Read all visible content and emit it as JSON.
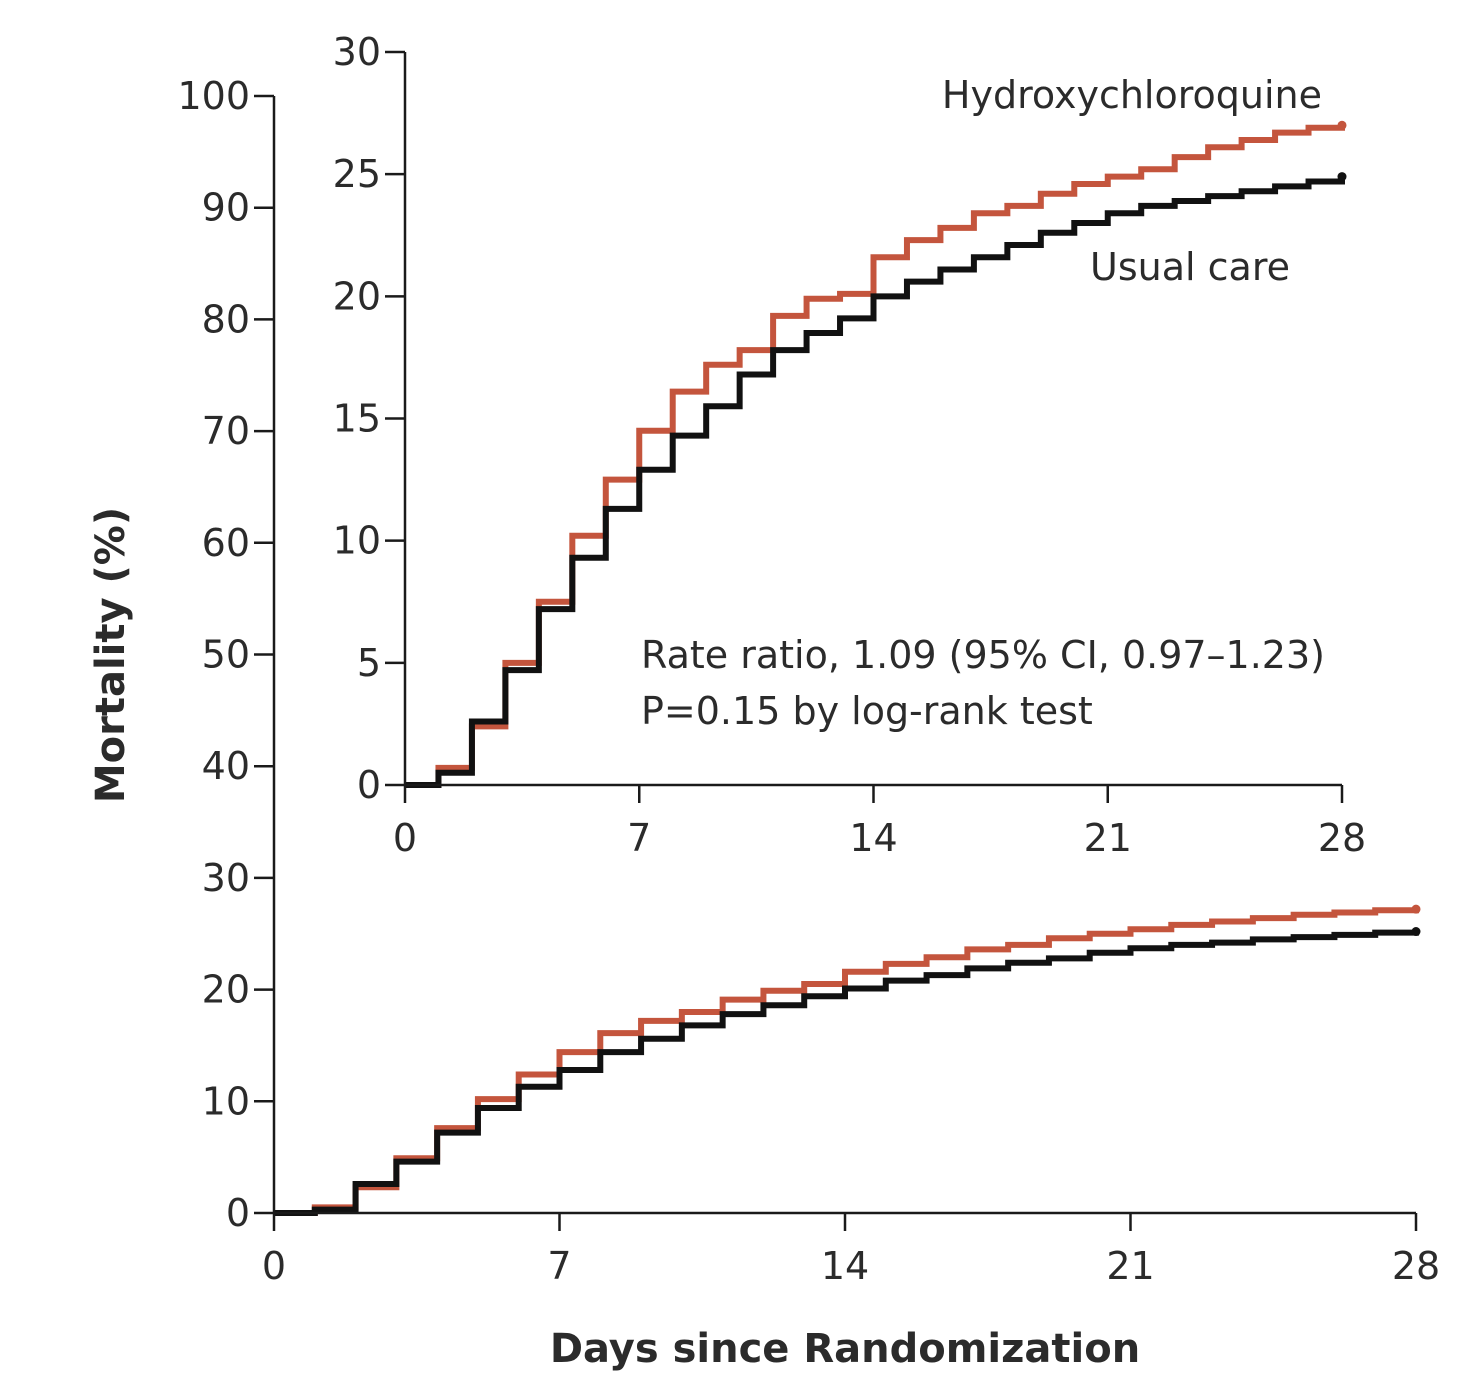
{
  "chart_data": [
    {
      "panel": "main",
      "type": "line",
      "step": true,
      "xlabel": "Days since Randomization",
      "ylabel": "Mortality (%)",
      "xlim": [
        0,
        28
      ],
      "ylim": [
        0,
        100
      ],
      "x_ticks": [
        0,
        7,
        14,
        21,
        28
      ],
      "y_ticks": [
        0,
        10,
        20,
        30,
        40,
        50,
        60,
        70,
        80,
        90,
        100
      ],
      "grid": false,
      "x": [
        0,
        1,
        2,
        3,
        4,
        5,
        6,
        7,
        8,
        9,
        10,
        11,
        12,
        13,
        14,
        15,
        16,
        17,
        18,
        19,
        20,
        21,
        22,
        23,
        24,
        25,
        26,
        27,
        28
      ],
      "series": [
        {
          "name": "Hydroxychloroquine",
          "color": "#c4553d",
          "values": [
            0,
            0.5,
            2.3,
            4.9,
            7.6,
            10.2,
            12.4,
            14.4,
            16.1,
            17.2,
            18.0,
            19.1,
            19.9,
            20.5,
            21.6,
            22.3,
            22.9,
            23.6,
            24.0,
            24.6,
            25.0,
            25.4,
            25.8,
            26.1,
            26.4,
            26.7,
            26.9,
            27.1,
            27.2
          ]
        },
        {
          "name": "Usual care",
          "color": "#111111",
          "values": [
            0,
            0.3,
            2.6,
            4.6,
            7.2,
            9.4,
            11.3,
            12.8,
            14.4,
            15.6,
            16.8,
            17.8,
            18.6,
            19.4,
            20.1,
            20.8,
            21.3,
            21.9,
            22.4,
            22.8,
            23.3,
            23.7,
            24.0,
            24.2,
            24.5,
            24.7,
            24.9,
            25.1,
            25.2
          ]
        }
      ]
    },
    {
      "panel": "inset",
      "type": "line",
      "step": true,
      "xlim": [
        0,
        28
      ],
      "ylim": [
        0,
        30
      ],
      "x_ticks": [
        0,
        7,
        14,
        21,
        28
      ],
      "y_ticks": [
        0,
        5,
        10,
        15,
        20,
        25,
        30
      ],
      "grid": false,
      "annotations": [
        "Rate ratio, 1.09 (95% CI, 0.97–1.23)",
        "P=0.15 by log-rank test"
      ],
      "x": [
        0,
        1,
        2,
        3,
        4,
        5,
        6,
        7,
        8,
        9,
        10,
        11,
        12,
        13,
        14,
        15,
        16,
        17,
        18,
        19,
        20,
        21,
        22,
        23,
        24,
        25,
        26,
        27,
        28
      ],
      "series": [
        {
          "name": "Hydroxychloroquine",
          "color": "#c4553d",
          "values": [
            0,
            0.7,
            2.4,
            5.0,
            7.5,
            10.2,
            12.5,
            14.5,
            16.1,
            17.2,
            17.8,
            19.2,
            19.9,
            20.1,
            21.6,
            22.3,
            22.8,
            23.4,
            23.7,
            24.2,
            24.6,
            24.9,
            25.2,
            25.7,
            26.1,
            26.4,
            26.7,
            26.9,
            27.0
          ]
        },
        {
          "name": "Usual care",
          "color": "#111111",
          "values": [
            0,
            0.5,
            2.6,
            4.7,
            7.2,
            9.3,
            11.3,
            12.9,
            14.3,
            15.5,
            16.8,
            17.8,
            18.5,
            19.1,
            20.0,
            20.6,
            21.1,
            21.6,
            22.1,
            22.6,
            23.0,
            23.4,
            23.7,
            23.9,
            24.1,
            24.3,
            24.5,
            24.7,
            24.9
          ]
        }
      ]
    }
  ]
}
